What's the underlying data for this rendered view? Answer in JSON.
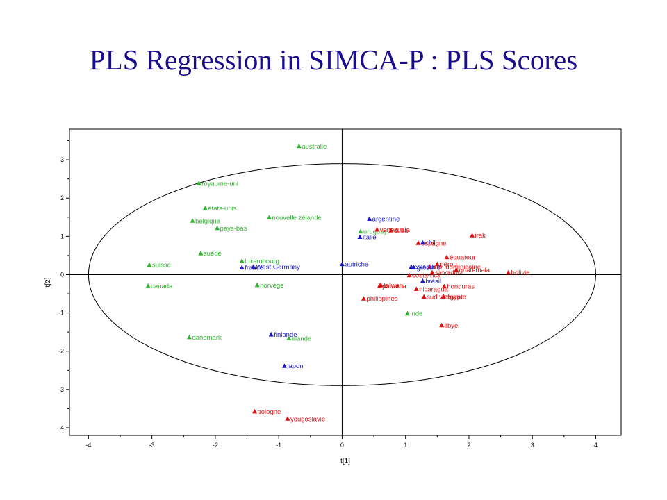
{
  "title": "PLS Regression in SIMCA-P  : PLS Scores",
  "colors": {
    "green": "#33b233",
    "blue": "#1a1acc",
    "red": "#e01010",
    "title": "#1a0d8c"
  },
  "chart_data": {
    "type": "scatter",
    "xlabel": "t[1]",
    "ylabel": "t[2]",
    "xlim": [
      -4.3,
      4.4
    ],
    "ylim": [
      -4.2,
      3.8
    ],
    "xticks": [
      -4,
      -3,
      -2,
      -1,
      0,
      1,
      2,
      3,
      4
    ],
    "yticks": [
      3,
      2,
      1,
      0,
      -1,
      -2,
      -3,
      -4
    ],
    "ellipse": {
      "cx": 0,
      "cy": 0,
      "rx": 4.0,
      "ry": 2.9
    },
    "grid": false,
    "points": [
      {
        "label": "australie",
        "x": -0.68,
        "y": 3.35,
        "color": "green"
      },
      {
        "label": "royaume-uni",
        "x": -2.26,
        "y": 2.38,
        "color": "green"
      },
      {
        "label": "états-unis",
        "x": -2.16,
        "y": 1.73,
        "color": "green"
      },
      {
        "label": "nouvelle zélande",
        "x": -1.15,
        "y": 1.49,
        "color": "green"
      },
      {
        "label": "belgique",
        "x": -2.36,
        "y": 1.4,
        "color": "green"
      },
      {
        "label": "pays-bas",
        "x": -1.97,
        "y": 1.21,
        "color": "green"
      },
      {
        "label": "suède",
        "x": -2.23,
        "y": 0.55,
        "color": "green"
      },
      {
        "label": "luxembourg",
        "x": -1.58,
        "y": 0.35,
        "color": "green"
      },
      {
        "label": "suisse",
        "x": -3.04,
        "y": 0.25,
        "color": "green"
      },
      {
        "label": "france",
        "x": -1.58,
        "y": 0.18,
        "color": "blue"
      },
      {
        "label": "West Germany",
        "x": -1.4,
        "y": 0.2,
        "color": "blue"
      },
      {
        "label": "norvège",
        "x": -1.34,
        "y": -0.28,
        "color": "green"
      },
      {
        "label": "canada",
        "x": -3.06,
        "y": -0.3,
        "color": "green"
      },
      {
        "label": "finlande",
        "x": -1.12,
        "y": -1.57,
        "color": "blue"
      },
      {
        "label": "irlande",
        "x": -0.84,
        "y": -1.67,
        "color": "green"
      },
      {
        "label": "danemark",
        "x": -2.41,
        "y": -1.64,
        "color": "green"
      },
      {
        "label": "japon",
        "x": -0.91,
        "y": -2.39,
        "color": "blue"
      },
      {
        "label": "pologne",
        "x": -1.38,
        "y": -3.58,
        "color": "red"
      },
      {
        "label": "yougoslavie",
        "x": -0.86,
        "y": -3.77,
        "color": "red"
      },
      {
        "label": "argentine",
        "x": 0.43,
        "y": 1.45,
        "color": "blue"
      },
      {
        "label": "uruguay",
        "x": 0.29,
        "y": 1.12,
        "color": "green"
      },
      {
        "label": "italie",
        "x": 0.28,
        "y": 0.98,
        "color": "blue"
      },
      {
        "label": "venezuela",
        "x": 0.55,
        "y": 1.17,
        "color": "red"
      },
      {
        "label": "cuba",
        "x": 0.77,
        "y": 1.15,
        "color": "red"
      },
      {
        "label": "espagne",
        "x": 1.2,
        "y": 0.82,
        "color": "red"
      },
      {
        "label": "chili",
        "x": 1.27,
        "y": 0.83,
        "color": "blue"
      },
      {
        "label": "irak",
        "x": 2.05,
        "y": 1.02,
        "color": "red"
      },
      {
        "label": "équateur",
        "x": 1.65,
        "y": 0.45,
        "color": "red"
      },
      {
        "label": "pérou",
        "x": 1.5,
        "y": 0.27,
        "color": "red"
      },
      {
        "label": "rép. dominicaine",
        "x": 1.38,
        "y": 0.2,
        "color": "red"
      },
      {
        "label": "salvador",
        "x": 1.42,
        "y": 0.05,
        "color": "red"
      },
      {
        "label": "guatémala",
        "x": 1.8,
        "y": 0.12,
        "color": "red"
      },
      {
        "label": "bolivie",
        "x": 2.62,
        "y": 0.05,
        "color": "red"
      },
      {
        "label": "autriche",
        "x": 0.0,
        "y": 0.27,
        "color": "blue"
      },
      {
        "label": "colombie",
        "x": 1.09,
        "y": 0.2,
        "color": "blue"
      },
      {
        "label": "grèce",
        "x": 1.13,
        "y": 0.18,
        "color": "blue"
      },
      {
        "label": "costa-rica",
        "x": 1.06,
        "y": -0.02,
        "color": "red"
      },
      {
        "label": "brésil",
        "x": 1.27,
        "y": -0.17,
        "color": "blue"
      },
      {
        "label": "taïwan",
        "x": 0.61,
        "y": -0.28,
        "color": "red"
      },
      {
        "label": "panama",
        "x": 0.59,
        "y": -0.3,
        "color": "red"
      },
      {
        "label": "honduras",
        "x": 1.61,
        "y": -0.31,
        "color": "red"
      },
      {
        "label": "nicaragua",
        "x": 1.17,
        "y": -0.38,
        "color": "red"
      },
      {
        "label": "égypte",
        "x": 1.6,
        "y": -0.58,
        "color": "red"
      },
      {
        "label": "sud vietnam",
        "x": 1.29,
        "y": -0.58,
        "color": "red"
      },
      {
        "label": "philippines",
        "x": 0.34,
        "y": -0.63,
        "color": "red"
      },
      {
        "label": "inde",
        "x": 1.03,
        "y": -1.02,
        "color": "green"
      },
      {
        "label": "libye",
        "x": 1.57,
        "y": -1.33,
        "color": "red"
      }
    ]
  }
}
